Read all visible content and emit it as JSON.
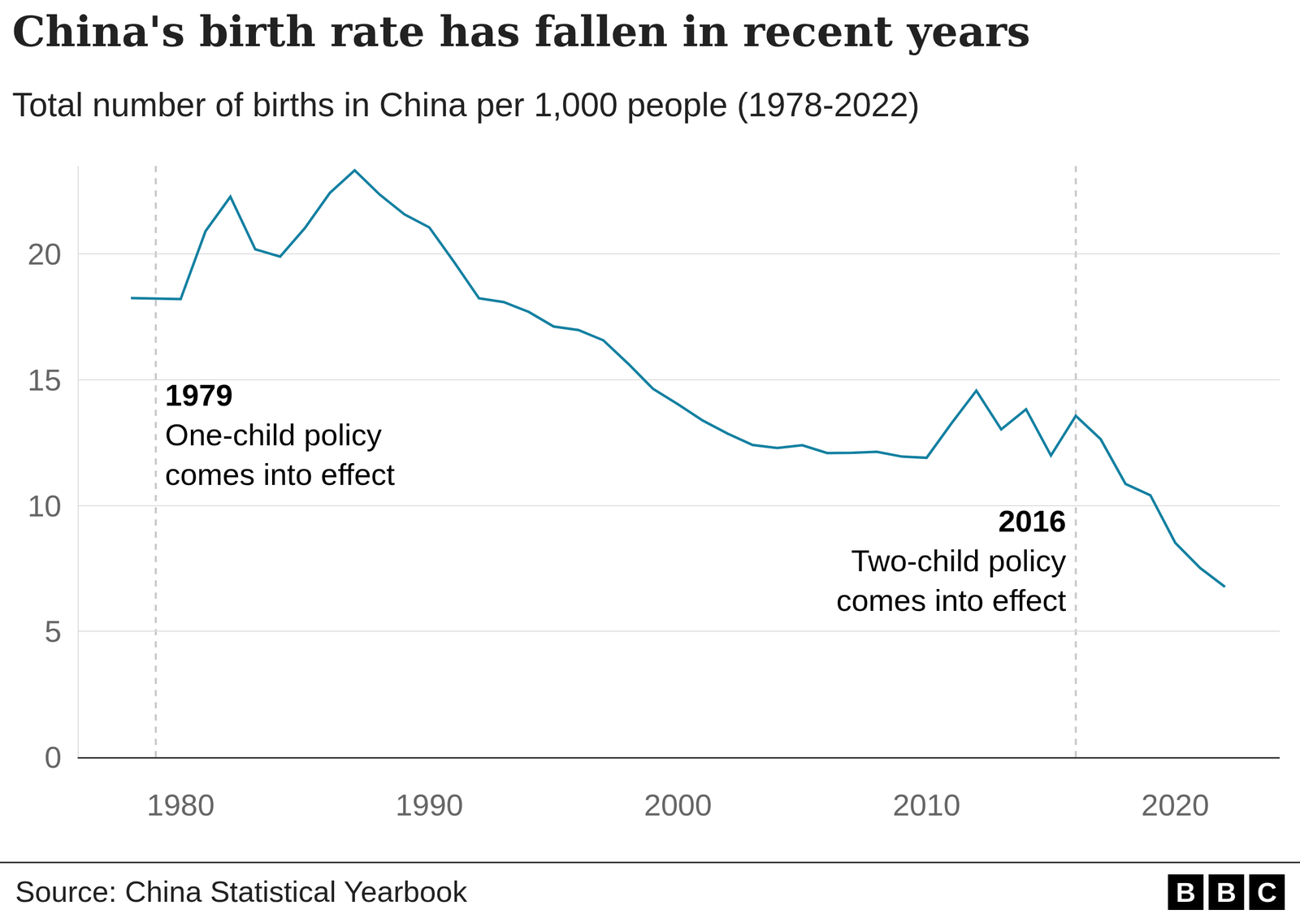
{
  "chart_data": {
    "type": "line",
    "title": "China's birth rate has fallen in recent years",
    "subtitle": "Total number of births in China per 1,000 people (1978-2022)",
    "x": [
      1978,
      1979,
      1980,
      1981,
      1982,
      1983,
      1984,
      1985,
      1986,
      1987,
      1988,
      1989,
      1990,
      1991,
      1992,
      1993,
      1994,
      1995,
      1996,
      1997,
      1998,
      1999,
      2000,
      2001,
      2002,
      2003,
      2004,
      2005,
      2006,
      2007,
      2008,
      2009,
      2010,
      2011,
      2012,
      2013,
      2014,
      2015,
      2016,
      2017,
      2018,
      2019,
      2020,
      2021,
      2022
    ],
    "values": [
      18.25,
      18.22,
      18.21,
      20.91,
      22.28,
      20.19,
      19.9,
      21.04,
      22.43,
      23.33,
      22.37,
      21.58,
      21.06,
      19.68,
      18.24,
      18.09,
      17.7,
      17.12,
      16.98,
      16.57,
      15.64,
      14.64,
      14.03,
      13.38,
      12.86,
      12.41,
      12.29,
      12.4,
      12.09,
      12.1,
      12.14,
      11.95,
      11.9,
      13.27,
      14.57,
      13.03,
      13.83,
      11.99,
      13.57,
      12.64,
      10.86,
      10.41,
      8.52,
      7.52,
      6.77
    ],
    "color": "#1380a1",
    "xlim": [
      1975.9,
      2024.2
    ],
    "xticks": [
      1980,
      1990,
      2000,
      2010,
      2020
    ],
    "ylim": [
      0,
      23.5
    ],
    "yticks": [
      0,
      5,
      10,
      15,
      20
    ],
    "grid": true,
    "annotations": [
      {
        "x": 1979,
        "label": "1979",
        "text": [
          "One-child policy",
          "comes into effect"
        ]
      },
      {
        "x": 2016,
        "label": "2016",
        "text": [
          "Two-child policy",
          "comes into effect"
        ]
      }
    ],
    "source": "Source: China Statistical Yearbook",
    "logo": "BBC"
  }
}
